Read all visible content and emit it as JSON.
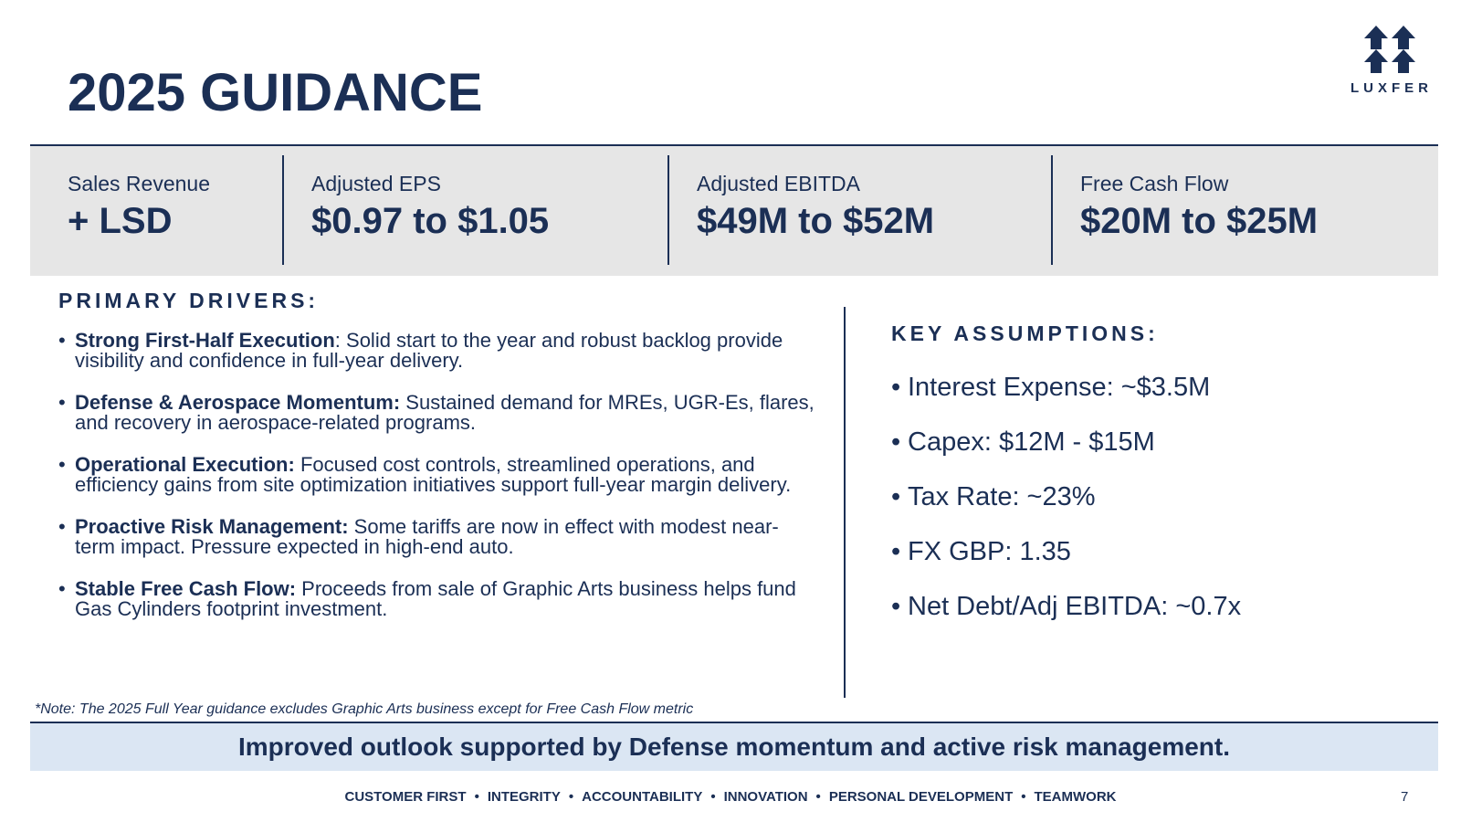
{
  "title": "2025 GUIDANCE",
  "logo": {
    "text": "LUXFER"
  },
  "metrics": [
    {
      "label": "Sales Revenue",
      "value": "+ LSD"
    },
    {
      "label": "Adjusted EPS",
      "value": "$0.97 to $1.05"
    },
    {
      "label": "Adjusted EBITDA",
      "value": "$49M to $52M"
    },
    {
      "label": "Free Cash Flow",
      "value": "$20M to $25M"
    }
  ],
  "drivers": {
    "heading": "PRIMARY DRIVERS:",
    "items": [
      {
        "bold": "Strong First-Half Execution",
        "text": ": Solid start to the year and robust backlog provide visibility and confidence in full-year delivery."
      },
      {
        "bold": "Defense & Aerospace Momentum:",
        "text": " Sustained demand for MREs, UGR-Es, flares, and recovery in aerospace-related programs."
      },
      {
        "bold": "Operational Execution:",
        "text": " Focused cost controls, streamlined operations, and efficiency gains from site optimization initiatives support full-year margin delivery."
      },
      {
        "bold": "Proactive Risk Management:",
        "text": " Some tariffs are now in effect with modest near-term impact. Pressure expected in high-end auto."
      },
      {
        "bold": "Stable Free Cash Flow:",
        "text": " Proceeds from sale of Graphic Arts business helps fund Gas Cylinders footprint investment."
      }
    ]
  },
  "assumptions": {
    "heading": "KEY ASSUMPTIONS:",
    "items": [
      "Interest Expense: ~$3.5M",
      "Capex: $12M - $15M",
      "Tax Rate: ~23%",
      "FX GBP: 1.35",
      "Net Debt/Adj EBITDA: ~0.7x"
    ]
  },
  "note": "*Note: The 2025 Full Year guidance excludes Graphic Arts business except for Free Cash Flow metric",
  "banner": "Improved outlook supported by Defense momentum and active risk management.",
  "footer": {
    "values": [
      "CUSTOMER FIRST",
      "INTEGRITY",
      "ACCOUNTABILITY",
      "INNOVATION",
      "PERSONAL DEVELOPMENT",
      "TEAMWORK"
    ],
    "separator": "•",
    "page_number": "7"
  },
  "colors": {
    "navy": "#1b2f55",
    "panel_gray": "#e6e6e6",
    "banner_blue": "#dbe6f3"
  }
}
